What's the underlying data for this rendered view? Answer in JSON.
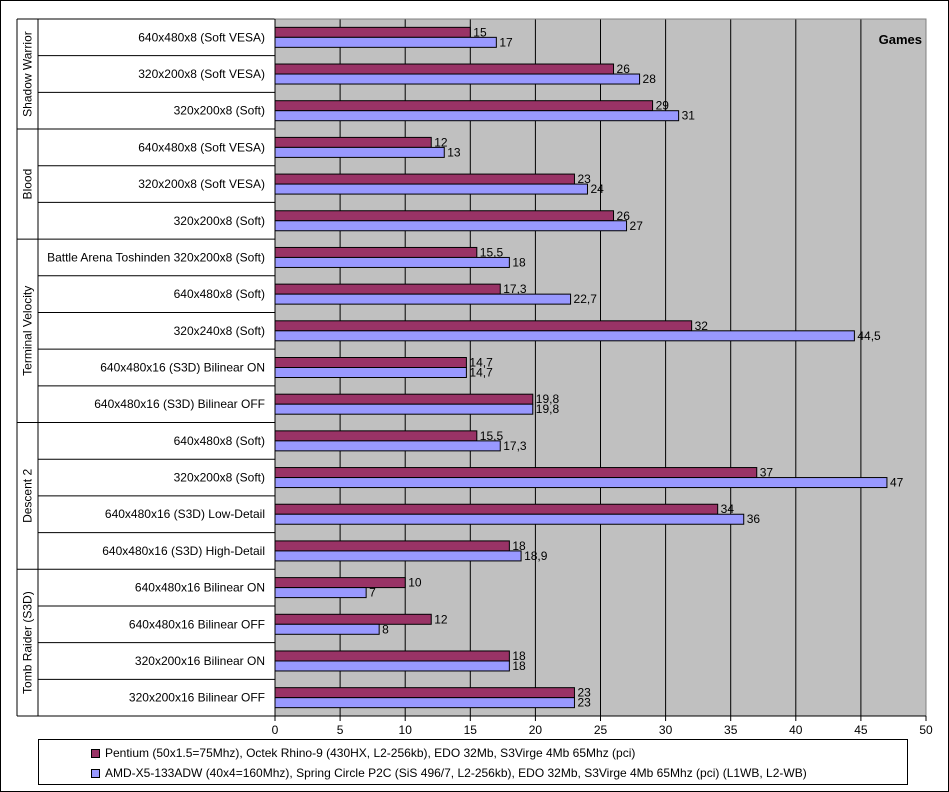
{
  "chart_data": {
    "type": "bar",
    "orientation": "horizontal",
    "title": "Games",
    "xlim": [
      0,
      50
    ],
    "x_ticks": [
      "0",
      "5",
      "10",
      "15",
      "20",
      "25",
      "30",
      "35",
      "40",
      "45",
      "50"
    ],
    "grid": true,
    "legend_position": "bottom",
    "groups": [
      {
        "name": "Shadow Warrior",
        "rows": [
          {
            "label": "640x480x8 (Soft VESA)",
            "values": [
              15,
              17
            ],
            "labels": [
              "15",
              "17"
            ]
          },
          {
            "label": "320x200x8 (Soft VESA)",
            "values": [
              26,
              28
            ],
            "labels": [
              "26",
              "28"
            ]
          },
          {
            "label": "320x200x8 (Soft)",
            "values": [
              29,
              31
            ],
            "labels": [
              "29",
              "31"
            ]
          }
        ]
      },
      {
        "name": "Blood",
        "rows": [
          {
            "label": "640x480x8 (Soft VESA)",
            "values": [
              12,
              13
            ],
            "labels": [
              "12",
              "13"
            ]
          },
          {
            "label": "320x200x8 (Soft VESA)",
            "values": [
              23,
              24
            ],
            "labels": [
              "23",
              "24"
            ]
          },
          {
            "label": "320x200x8 (Soft)",
            "values": [
              26,
              27
            ],
            "labels": [
              "26",
              "27"
            ]
          }
        ]
      },
      {
        "name": "Terminal Velocity",
        "rows": [
          {
            "label": "Battle Arena Toshinden 320x200x8 (Soft)",
            "values": [
              15.5,
              18
            ],
            "labels": [
              "15,5",
              "18"
            ]
          },
          {
            "label": "640x480x8 (Soft)",
            "values": [
              17.3,
              22.7
            ],
            "labels": [
              "17,3",
              "22,7"
            ]
          },
          {
            "label": "320x240x8 (Soft)",
            "values": [
              32,
              44.5
            ],
            "labels": [
              "32",
              "44,5"
            ]
          },
          {
            "label": "640x480x16 (S3D) Bilinear ON",
            "values": [
              14.7,
              14.7
            ],
            "labels": [
              "14,7",
              "14,7"
            ]
          },
          {
            "label": "640x480x16 (S3D) Bilinear OFF",
            "values": [
              19.8,
              19.8
            ],
            "labels": [
              "19,8",
              "19,8"
            ]
          }
        ]
      },
      {
        "name": "Descent 2",
        "rows": [
          {
            "label": "640x480x8 (Soft)",
            "values": [
              15.5,
              17.3
            ],
            "labels": [
              "15,5",
              "17,3"
            ]
          },
          {
            "label": "320x200x8 (Soft)",
            "values": [
              37,
              47
            ],
            "labels": [
              "37",
              "47"
            ]
          },
          {
            "label": "640x480x16 (S3D) Low-Detail",
            "values": [
              34,
              36
            ],
            "labels": [
              "34",
              "36"
            ]
          },
          {
            "label": "640x480x16 (S3D) High-Detail",
            "values": [
              18,
              18.9
            ],
            "labels": [
              "18",
              "18,9"
            ]
          }
        ]
      },
      {
        "name": "Tomb Raider (S3D)",
        "rows": [
          {
            "label": "640x480x16 Bilinear ON",
            "values": [
              10,
              7
            ],
            "labels": [
              "10",
              "7"
            ]
          },
          {
            "label": "640x480x16 Bilinear OFF",
            "values": [
              12,
              8
            ],
            "labels": [
              "12",
              "8"
            ]
          },
          {
            "label": "320x200x16 Bilinear ON",
            "values": [
              18,
              18
            ],
            "labels": [
              "18",
              "18"
            ]
          },
          {
            "label": "320x200x16 Bilinear OFF",
            "values": [
              23,
              23
            ],
            "labels": [
              "23",
              "23"
            ]
          }
        ]
      }
    ],
    "series": [
      {
        "name": "Pentium (50x1.5=75Mhz), Octek Rhino-9 (430HX, L2-256kb), EDO 32Mb, S3Virge 4Mb 65Mhz (pci)",
        "color": "#993366"
      },
      {
        "name": "AMD-X5-133ADW (40x4=160Mhz), Spring Circle P2C (SiS 496/7, L2-256kb), EDO 32Mb, S3Virge 4Mb 65Mhz (pci) (L1WB, L2-WB)",
        "color": "#9999ff"
      }
    ]
  }
}
